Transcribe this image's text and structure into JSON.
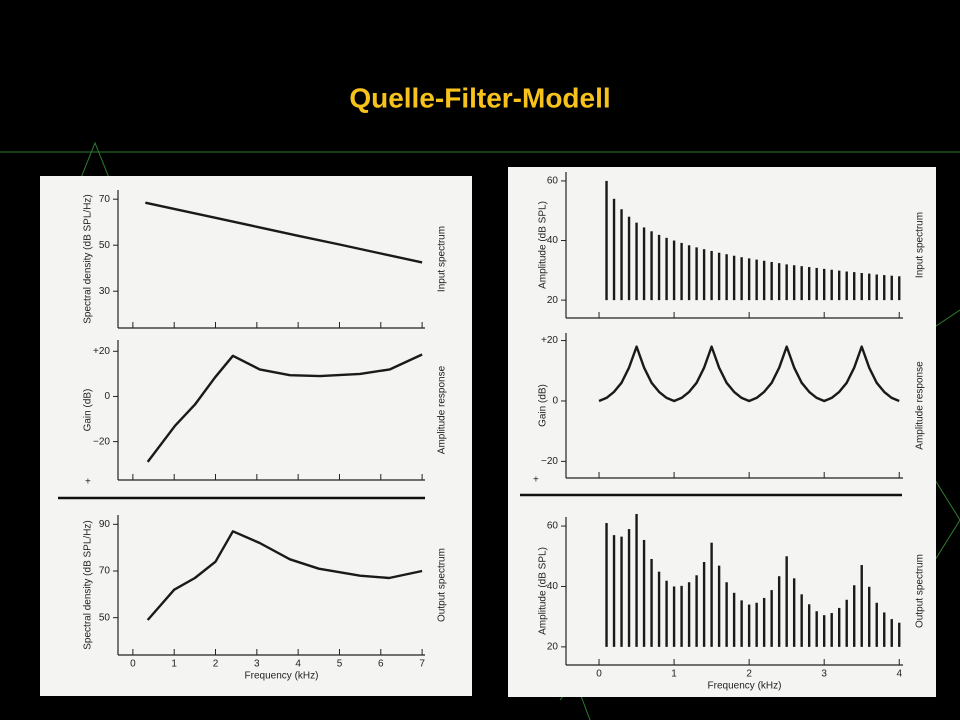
{
  "title": "Quelle-Filter-Modell",
  "chart_data": [
    {
      "type": "line",
      "y_label": "Spectral density (dB SPL/Hz)",
      "side_label": "Input spectrum",
      "color": "#1a1a1a",
      "x": [
        0.3,
        1,
        2,
        3,
        4,
        5,
        6,
        7
      ],
      "values": [
        68.5,
        65.8,
        61.9,
        58,
        54.1,
        50.3,
        46.4,
        42.5
      ],
      "xlim": [
        -0.36,
        7.07
      ],
      "ylim": [
        14,
        74
      ],
      "yticks": [
        30,
        50,
        70
      ]
    },
    {
      "type": "line",
      "y_label": "Gain (dB)",
      "side_label": "Amplitude response",
      "annotation": "+",
      "color": "#1a1a1a",
      "x": [
        0.36,
        1.02,
        1.5,
        1.99,
        2.42,
        3.07,
        3.8,
        4.53,
        5.5,
        6.22,
        7
      ],
      "values": [
        -29,
        -13,
        -3.6,
        8.5,
        18,
        12,
        9.4,
        9,
        10,
        12,
        18.6
      ],
      "xlim": [
        -0.36,
        7.07
      ],
      "ylim": [
        -37,
        25
      ],
      "yticks": [
        {
          "value": 20,
          "label": "+20"
        },
        0,
        {
          "value": -20,
          "label": "−20"
        }
      ]
    },
    {
      "type": "line",
      "y_label": "Spectral density (dB SPL/Hz)",
      "side_label": "Output spectrum",
      "x_label": "Frequency (kHz)",
      "color": "#1a1a1a",
      "x": [
        0.36,
        1,
        1.5,
        2,
        2.42,
        3.07,
        3.8,
        4.5,
        5.5,
        6.2,
        7
      ],
      "values": [
        49,
        62,
        67,
        74,
        87,
        82,
        75,
        71,
        68,
        67,
        70
      ],
      "xlim": [
        -0.36,
        7.07
      ],
      "ylim": [
        34,
        94
      ],
      "yticks": [
        50,
        70,
        90
      ],
      "xticks": [
        0,
        1,
        2,
        3,
        4,
        5,
        6,
        7
      ]
    },
    {
      "type": "bar",
      "y_label": "Amplitude (dB SPL)",
      "side_label": "Input spectrum",
      "color": "#1a1a1a",
      "x": [
        0.1,
        0.2,
        0.3,
        0.4,
        0.5,
        0.6,
        0.7,
        0.8,
        0.9,
        1.0,
        1.1,
        1.2,
        1.3,
        1.4,
        1.5,
        1.6,
        1.7,
        1.8,
        1.9,
        2.0,
        2.1,
        2.2,
        2.3,
        2.4,
        2.5,
        2.6,
        2.7,
        2.8,
        2.9,
        3.0,
        3.1,
        3.2,
        3.3,
        3.4,
        3.5,
        3.6,
        3.7,
        3.8,
        3.9,
        4.0
      ],
      "values": [
        60,
        54,
        50.5,
        48,
        46,
        44.4,
        43.1,
        41.9,
        40.9,
        40,
        39.2,
        38.4,
        37.7,
        37.1,
        36.5,
        35.9,
        35.4,
        34.9,
        34.4,
        34,
        33.6,
        33.2,
        32.8,
        32.4,
        32,
        31.7,
        31.4,
        31.1,
        30.8,
        30.5,
        30.2,
        29.9,
        29.6,
        29.4,
        29.1,
        28.9,
        28.6,
        28.4,
        28.2,
        28
      ],
      "xlim": [
        -0.44,
        4.05
      ],
      "ylim": [
        14,
        63
      ],
      "yticks": [
        20,
        40,
        60
      ]
    },
    {
      "type": "line",
      "y_label": "Gain (dB)",
      "side_label": "Amplitude response",
      "annotation": "+",
      "color": "#1a1a1a",
      "x": [
        0,
        0.1,
        0.2,
        0.3,
        0.4,
        0.5,
        0.6,
        0.7,
        0.8,
        0.9,
        1.0,
        1.1,
        1.2,
        1.3,
        1.4,
        1.5,
        1.6,
        1.7,
        1.8,
        1.9,
        2.0,
        2.1,
        2.2,
        2.3,
        2.4,
        2.5,
        2.6,
        2.7,
        2.8,
        2.9,
        3.0,
        3.1,
        3.2,
        3.3,
        3.4,
        3.5,
        3.6,
        3.7,
        3.8,
        3.9,
        4.0
      ],
      "values": [
        0,
        1,
        3,
        6,
        11,
        18,
        11,
        6,
        3,
        1,
        0,
        1,
        3,
        6,
        11,
        18,
        11,
        6,
        3,
        1,
        0,
        1,
        3,
        6,
        11,
        18,
        11,
        6,
        3,
        1,
        0,
        1,
        3,
        6,
        11,
        18,
        11,
        6,
        3,
        1,
        0
      ],
      "xlim": [
        -0.44,
        4.05
      ],
      "ylim": [
        -25.5,
        22.5
      ],
      "yticks": [
        {
          "value": 20,
          "label": "+20"
        },
        0,
        {
          "value": -20,
          "label": "−20"
        }
      ]
    },
    {
      "type": "bar",
      "y_label": "Amplitude (dB SPL)",
      "side_label": "Output spectrum",
      "x_label": "Frequency (kHz)",
      "color": "#1a1a1a",
      "x": [
        0.1,
        0.2,
        0.3,
        0.4,
        0.5,
        0.6,
        0.7,
        0.8,
        0.9,
        1.0,
        1.1,
        1.2,
        1.3,
        1.4,
        1.5,
        1.6,
        1.7,
        1.8,
        1.9,
        2.0,
        2.1,
        2.2,
        2.3,
        2.4,
        2.5,
        2.6,
        2.7,
        2.8,
        2.9,
        3.0,
        3.1,
        3.2,
        3.3,
        3.4,
        3.5,
        3.6,
        3.7,
        3.8,
        3.9,
        4.0
      ],
      "values": [
        61,
        57,
        56.5,
        59,
        64,
        55.4,
        49.1,
        44.9,
        41.9,
        40,
        40.2,
        41.4,
        43.7,
        48.1,
        54.5,
        46.9,
        41.4,
        37.9,
        35.4,
        34,
        34.6,
        36.2,
        38.8,
        43.4,
        50,
        42.7,
        37.4,
        34.1,
        31.8,
        30.5,
        31.2,
        32.9,
        35.6,
        40.4,
        47.1,
        39.9,
        34.6,
        31.4,
        29.2,
        28
      ],
      "xlim": [
        -0.44,
        4.05
      ],
      "ylim": [
        14,
        63
      ],
      "yticks": [
        20,
        40,
        60
      ],
      "xticks": [
        0,
        1,
        2,
        3,
        4
      ]
    }
  ]
}
